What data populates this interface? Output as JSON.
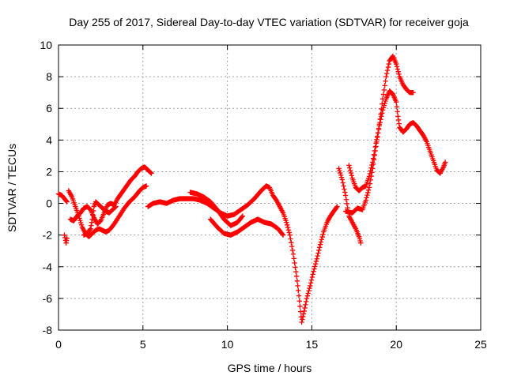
{
  "chart_data": {
    "type": "scatter",
    "title": "Day 255 of 2017, Sidereal Day-to-day VTEC variation (SDTVAR) for receiver goja",
    "xlabel": "GPS time / hours",
    "ylabel": "SDTVAR / TECUs",
    "xlim": [
      0,
      25
    ],
    "ylim": [
      -8,
      10
    ],
    "x_ticks": [
      0,
      5,
      10,
      15,
      20,
      25
    ],
    "y_ticks": [
      -8,
      -6,
      -4,
      -2,
      0,
      2,
      4,
      6,
      8,
      10
    ],
    "grid": true,
    "legend": "none",
    "marker": "plus",
    "color": "#ff0000",
    "series": [
      {
        "traces": [
          [
            [
              0.0,
              0.6
            ],
            [
              0.2,
              0.5
            ],
            [
              0.35,
              0.3
            ],
            [
              0.5,
              0.1
            ]
          ],
          [
            [
              0.35,
              -2.0
            ],
            [
              0.45,
              -2.5
            ],
            [
              0.5,
              -2.2
            ]
          ],
          [
            [
              0.6,
              0.8
            ],
            [
              0.8,
              0.4
            ],
            [
              1.0,
              -0.2
            ],
            [
              1.2,
              -0.8
            ],
            [
              1.4,
              -1.5
            ],
            [
              1.6,
              -1.9
            ],
            [
              1.8,
              -2.1
            ],
            [
              2.0,
              -1.9
            ],
            [
              2.2,
              -1.7
            ],
            [
              2.4,
              -1.6
            ],
            [
              2.6,
              -1.7
            ],
            [
              2.8,
              -1.8
            ],
            [
              3.0,
              -1.7
            ],
            [
              3.3,
              -1.3
            ],
            [
              3.6,
              -0.8
            ],
            [
              3.9,
              -0.3
            ],
            [
              4.2,
              0.1
            ],
            [
              4.5,
              0.4
            ],
            [
              4.8,
              0.8
            ],
            [
              5.0,
              1.0
            ],
            [
              5.2,
              1.1
            ]
          ],
          [
            [
              0.7,
              -1.0
            ],
            [
              0.9,
              -1.1
            ],
            [
              1.1,
              -0.8
            ],
            [
              1.3,
              -0.6
            ],
            [
              1.5,
              -0.3
            ],
            [
              1.7,
              -0.2
            ],
            [
              1.9,
              -0.4
            ],
            [
              2.1,
              -0.9
            ],
            [
              2.3,
              -1.3
            ],
            [
              2.5,
              -1.1
            ],
            [
              2.7,
              -0.6
            ],
            [
              2.9,
              -0.1
            ],
            [
              3.1,
              0.0
            ],
            [
              3.3,
              -0.1
            ],
            [
              3.5,
              0.3
            ],
            [
              3.7,
              0.6
            ],
            [
              3.9,
              0.9
            ],
            [
              4.1,
              1.2
            ],
            [
              4.3,
              1.5
            ],
            [
              4.5,
              1.7
            ],
            [
              4.7,
              2.0
            ],
            [
              4.9,
              2.2
            ],
            [
              5.1,
              2.3
            ],
            [
              5.3,
              2.1
            ],
            [
              5.5,
              1.9
            ]
          ],
          [
            [
              1.5,
              -2.0
            ],
            [
              1.7,
              -1.9
            ],
            [
              1.9,
              -1.6
            ],
            [
              2.0,
              -1.0
            ],
            [
              2.1,
              -0.2
            ],
            [
              2.2,
              0.1
            ],
            [
              2.4,
              -0.1
            ],
            [
              2.6,
              -0.3
            ],
            [
              2.8,
              -0.5
            ],
            [
              3.0,
              -0.6
            ],
            [
              3.2,
              -0.4
            ],
            [
              3.4,
              -0.2
            ]
          ],
          [
            [
              5.3,
              -0.2
            ],
            [
              5.6,
              0.0
            ],
            [
              6.0,
              0.1
            ],
            [
              6.4,
              0.0
            ],
            [
              6.8,
              0.2
            ],
            [
              7.2,
              0.3
            ],
            [
              7.6,
              0.3
            ],
            [
              8.0,
              0.3
            ],
            [
              8.4,
              0.2
            ],
            [
              8.8,
              0.0
            ],
            [
              9.2,
              -0.3
            ],
            [
              9.6,
              -0.6
            ],
            [
              10.0,
              -0.8
            ],
            [
              10.4,
              -0.7
            ],
            [
              10.8,
              -0.4
            ],
            [
              11.2,
              -0.1
            ],
            [
              11.6,
              0.3
            ],
            [
              12.0,
              0.8
            ],
            [
              12.3,
              1.1
            ],
            [
              12.5,
              1.0
            ],
            [
              12.7,
              0.5
            ],
            [
              12.9,
              0.2
            ],
            [
              13.1,
              -0.2
            ],
            [
              13.3,
              -0.6
            ],
            [
              13.5,
              -1.2
            ],
            [
              13.7,
              -2.0
            ],
            [
              13.9,
              -3.2
            ],
            [
              14.1,
              -4.6
            ],
            [
              14.2,
              -5.5
            ],
            [
              14.3,
              -6.5
            ],
            [
              14.4,
              -7.5
            ],
            [
              14.55,
              -6.8
            ],
            [
              14.7,
              -6.0
            ],
            [
              14.9,
              -5.2
            ],
            [
              15.1,
              -4.3
            ],
            [
              15.3,
              -3.5
            ],
            [
              15.5,
              -2.6
            ],
            [
              15.7,
              -1.8
            ],
            [
              15.9,
              -1.2
            ],
            [
              16.1,
              -0.8
            ],
            [
              16.3,
              -0.5
            ],
            [
              16.5,
              -0.2
            ]
          ],
          [
            [
              7.8,
              0.7
            ],
            [
              8.2,
              0.6
            ],
            [
              8.6,
              0.4
            ],
            [
              9.0,
              0.1
            ],
            [
              9.4,
              -0.4
            ],
            [
              9.8,
              -1.0
            ],
            [
              10.2,
              -1.4
            ],
            [
              10.6,
              -1.2
            ],
            [
              10.9,
              -0.8
            ]
          ],
          [
            [
              9.0,
              -1.0
            ],
            [
              9.4,
              -1.5
            ],
            [
              9.8,
              -1.9
            ],
            [
              10.2,
              -2.0
            ],
            [
              10.6,
              -1.8
            ],
            [
              11.0,
              -1.5
            ],
            [
              11.4,
              -1.2
            ],
            [
              11.8,
              -1.0
            ],
            [
              12.2,
              -1.2
            ],
            [
              12.6,
              -1.3
            ],
            [
              13.0,
              -1.6
            ],
            [
              13.3,
              -2.0
            ]
          ],
          [
            [
              16.6,
              2.2
            ],
            [
              16.8,
              1.5
            ],
            [
              17.0,
              0.5
            ],
            [
              17.2,
              -0.8
            ],
            [
              17.4,
              -1.2
            ],
            [
              17.6,
              -1.6
            ],
            [
              17.8,
              -2.1
            ],
            [
              17.9,
              -2.5
            ]
          ],
          [
            [
              17.2,
              2.4
            ],
            [
              17.4,
              1.6
            ],
            [
              17.6,
              1.0
            ],
            [
              17.8,
              0.8
            ],
            [
              18.0,
              1.0
            ],
            [
              18.2,
              1.1
            ],
            [
              18.4,
              1.7
            ],
            [
              18.6,
              2.6
            ],
            [
              18.8,
              3.8
            ],
            [
              19.0,
              4.9
            ],
            [
              19.2,
              5.9
            ],
            [
              19.4,
              6.6
            ],
            [
              19.6,
              7.1
            ],
            [
              19.8,
              6.9
            ],
            [
              20.0,
              6.4
            ],
            [
              20.1,
              5.5
            ],
            [
              20.2,
              4.8
            ],
            [
              20.4,
              4.5
            ],
            [
              20.6,
              4.7
            ],
            [
              20.8,
              5.0
            ],
            [
              21.0,
              5.1
            ],
            [
              21.2,
              4.9
            ],
            [
              21.4,
              4.6
            ],
            [
              21.6,
              4.3
            ],
            [
              21.8,
              3.9
            ],
            [
              22.0,
              3.3
            ],
            [
              22.2,
              2.7
            ],
            [
              22.4,
              2.1
            ],
            [
              22.6,
              1.9
            ],
            [
              22.8,
              2.3
            ],
            [
              22.9,
              2.6
            ]
          ],
          [
            [
              17.0,
              -0.5
            ],
            [
              17.4,
              -0.6
            ],
            [
              17.7,
              -0.3
            ],
            [
              18.0,
              -0.4
            ],
            [
              18.2,
              0.2
            ],
            [
              18.4,
              1.0
            ],
            [
              18.6,
              2.2
            ],
            [
              18.8,
              3.6
            ],
            [
              19.0,
              5.0
            ],
            [
              19.2,
              6.6
            ],
            [
              19.4,
              8.0
            ],
            [
              19.6,
              9.0
            ],
            [
              19.8,
              9.3
            ],
            [
              20.0,
              8.8
            ],
            [
              20.2,
              8.0
            ],
            [
              20.4,
              7.5
            ],
            [
              20.6,
              7.2
            ],
            [
              20.8,
              7.0
            ],
            [
              21.0,
              7.0
            ]
          ]
        ]
      }
    ]
  }
}
